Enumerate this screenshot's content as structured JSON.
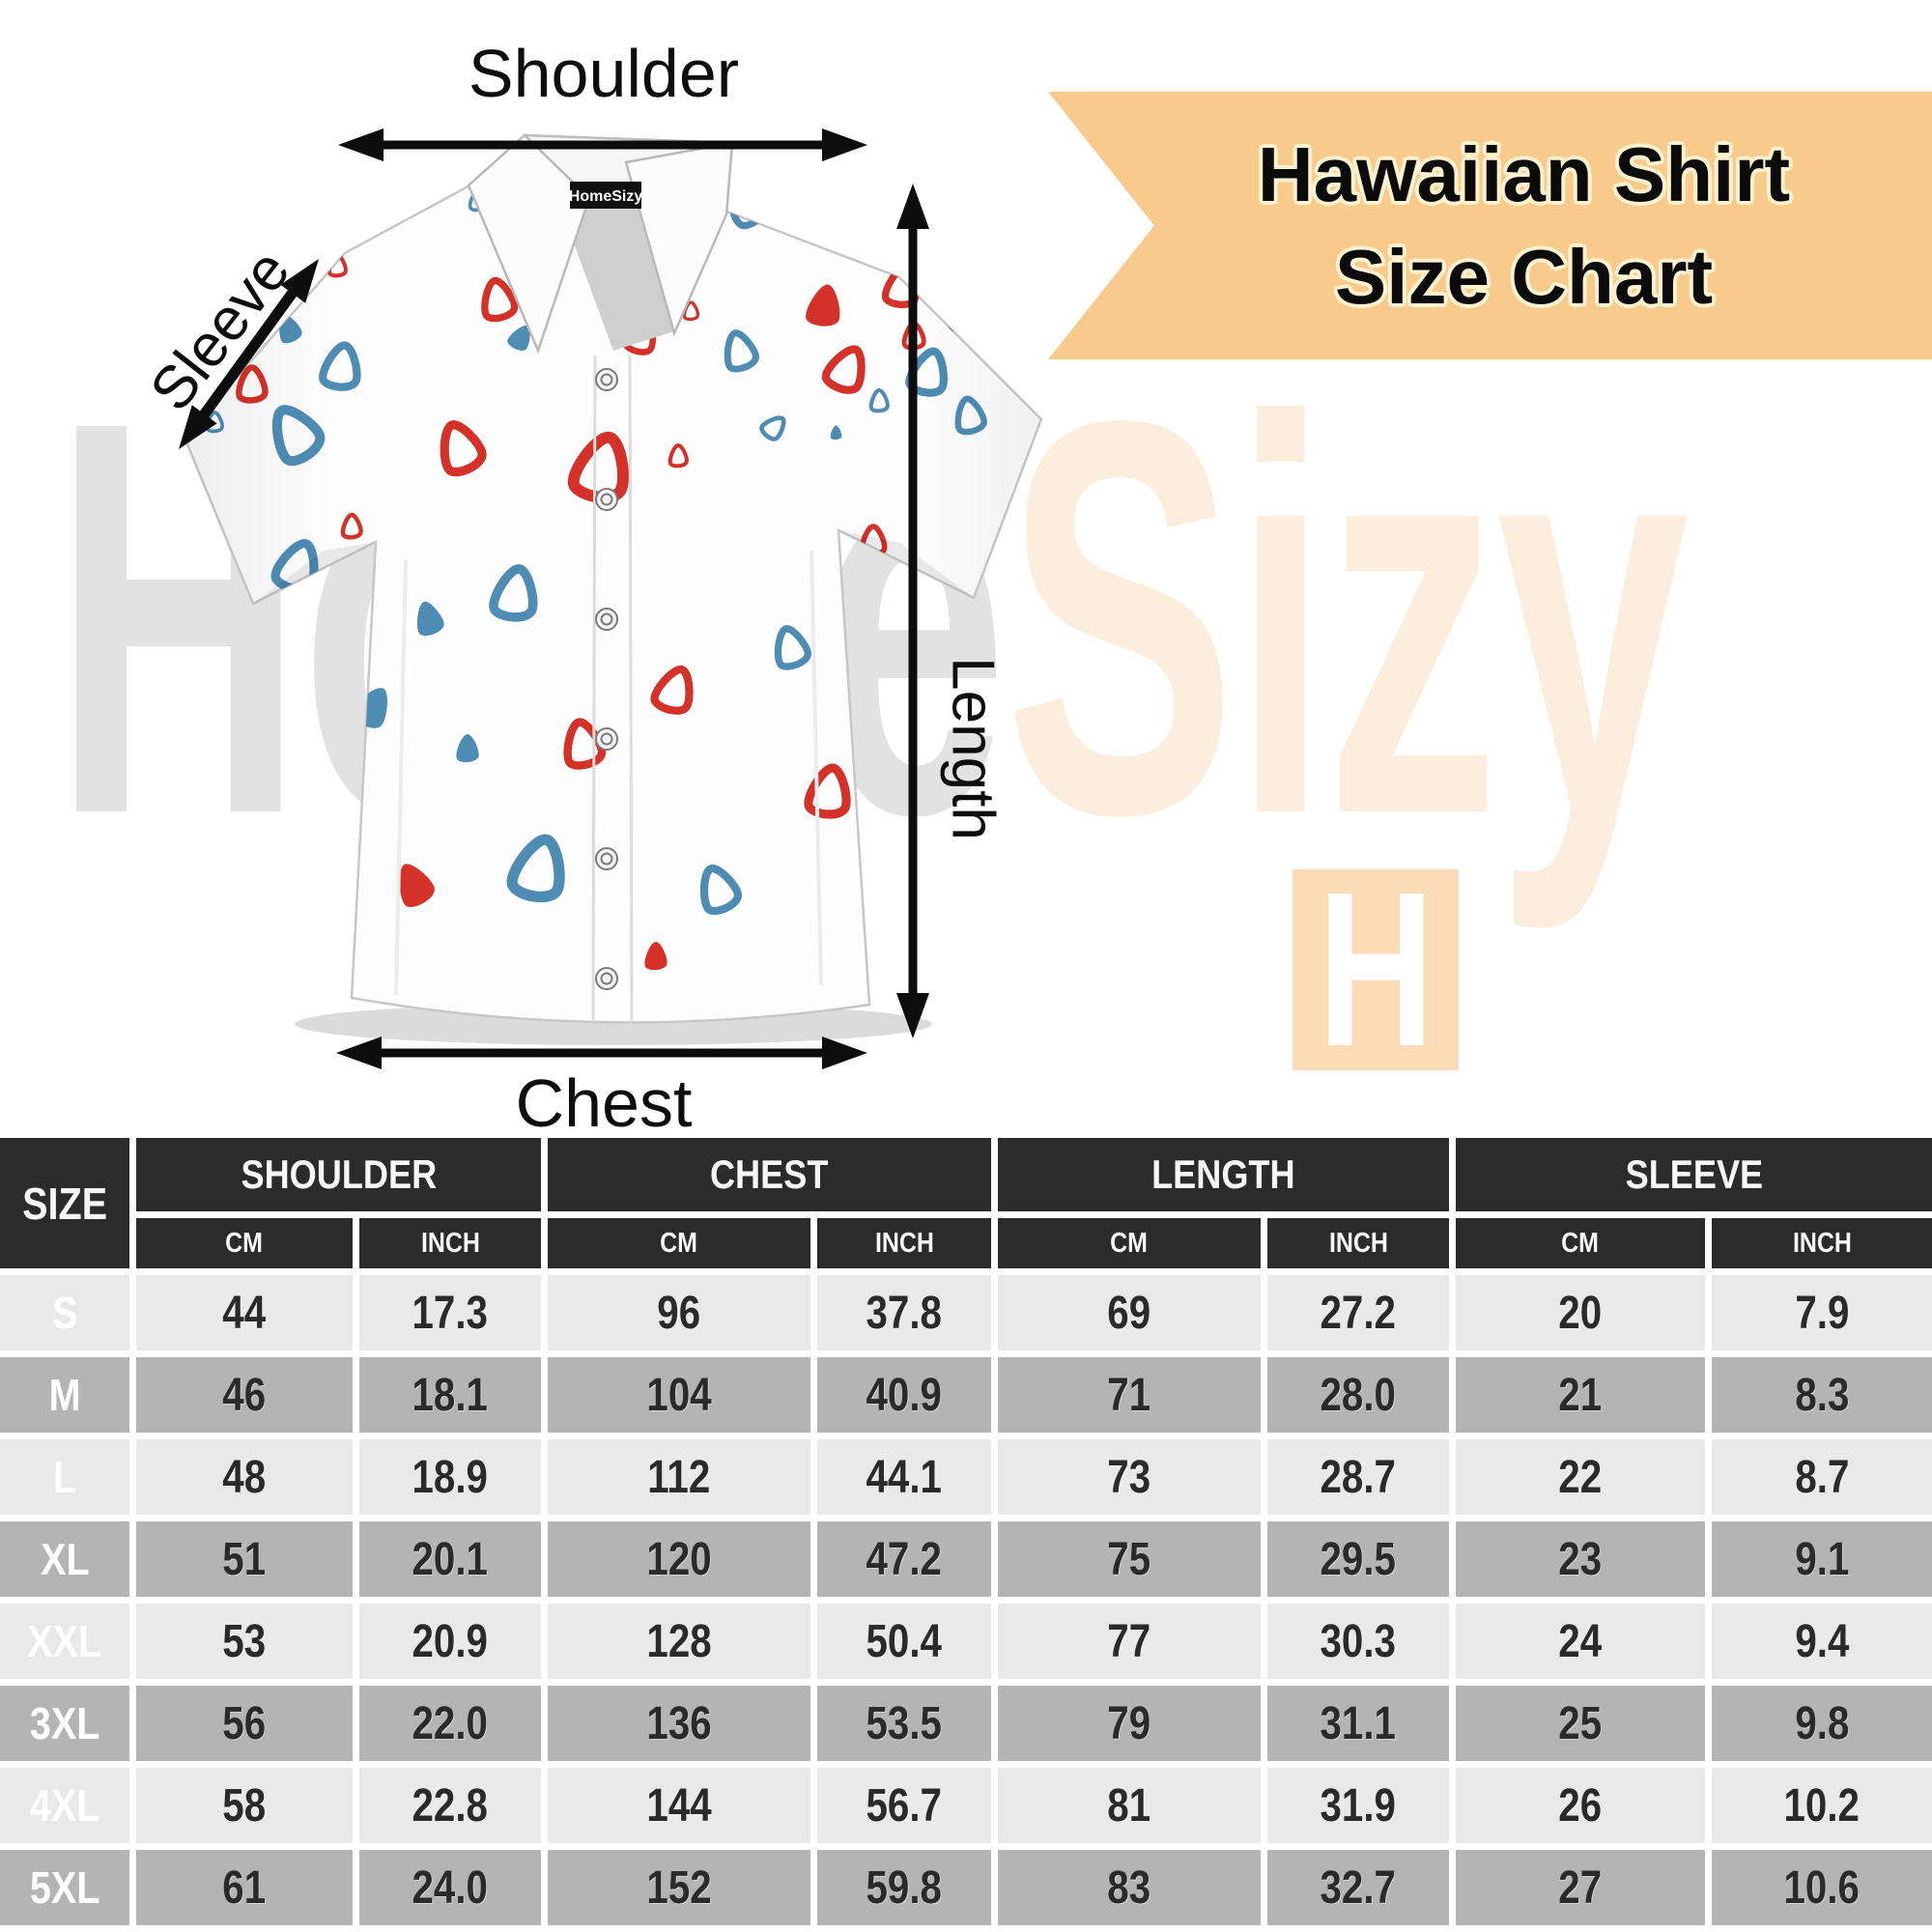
{
  "banner": {
    "title_line1": "Hawaiian Shirt",
    "title_line2": "Size Chart",
    "bg_color": "#f8ca8c",
    "text_color": "#0b0b0b",
    "halo_color": "#fdf2cf"
  },
  "watermark": {
    "left_text": "Home",
    "right_text": "Sizy",
    "left_color": "#e2e2e2",
    "right_color": "#fceedd"
  },
  "logo": {
    "letter": "H",
    "bg_color": "#fcdcb7",
    "letter_color": "#ffffff"
  },
  "shirt": {
    "collar_tag": "HomeSizy",
    "pattern_red": "#d43129",
    "pattern_blue": "#4e8cb4",
    "fabric_color": "#fdfdfd"
  },
  "measurements": {
    "shoulder": "Shoulder",
    "sleeve": "Sleeve",
    "length": "Length",
    "chest": "Chest"
  },
  "table": {
    "corner_label": "SIZE",
    "groups": [
      "SHOULDER",
      "CHEST",
      "LENGTH",
      "SLEEVE"
    ],
    "subheaders": [
      "CM",
      "INCH"
    ],
    "header_bg": "#2b2b2b",
    "row_light": "#e9e9e9",
    "row_dark": "#b4b4b4",
    "rows": [
      {
        "size": "S",
        "shoulder_cm": "44",
        "shoulder_inch": "17.3",
        "chest_cm": "96",
        "chest_inch": "37.8",
        "length_cm": "69",
        "length_inch": "27.2",
        "sleeve_cm": "20",
        "sleeve_inch": "7.9"
      },
      {
        "size": "M",
        "shoulder_cm": "46",
        "shoulder_inch": "18.1",
        "chest_cm": "104",
        "chest_inch": "40.9",
        "length_cm": "71",
        "length_inch": "28.0",
        "sleeve_cm": "21",
        "sleeve_inch": "8.3"
      },
      {
        "size": "L",
        "shoulder_cm": "48",
        "shoulder_inch": "18.9",
        "chest_cm": "112",
        "chest_inch": "44.1",
        "length_cm": "73",
        "length_inch": "28.7",
        "sleeve_cm": "22",
        "sleeve_inch": "8.7"
      },
      {
        "size": "XL",
        "shoulder_cm": "51",
        "shoulder_inch": "20.1",
        "chest_cm": "120",
        "chest_inch": "47.2",
        "length_cm": "75",
        "length_inch": "29.5",
        "sleeve_cm": "23",
        "sleeve_inch": "9.1"
      },
      {
        "size": "XXL",
        "shoulder_cm": "53",
        "shoulder_inch": "20.9",
        "chest_cm": "128",
        "chest_inch": "50.4",
        "length_cm": "77",
        "length_inch": "30.3",
        "sleeve_cm": "24",
        "sleeve_inch": "9.4"
      },
      {
        "size": "3XL",
        "shoulder_cm": "56",
        "shoulder_inch": "22.0",
        "chest_cm": "136",
        "chest_inch": "53.5",
        "length_cm": "79",
        "length_inch": "31.1",
        "sleeve_cm": "25",
        "sleeve_inch": "9.8"
      },
      {
        "size": "4XL",
        "shoulder_cm": "58",
        "shoulder_inch": "22.8",
        "chest_cm": "144",
        "chest_inch": "56.7",
        "length_cm": "81",
        "length_inch": "31.9",
        "sleeve_cm": "26",
        "sleeve_inch": "10.2"
      },
      {
        "size": "5XL",
        "shoulder_cm": "61",
        "shoulder_inch": "24.0",
        "chest_cm": "152",
        "chest_inch": "59.8",
        "length_cm": "83",
        "length_inch": "32.7",
        "sleeve_cm": "27",
        "sleeve_inch": "10.6"
      }
    ]
  },
  "chart_data": {
    "type": "table",
    "title": "Hawaiian Shirt Size Chart",
    "columns": [
      "SIZE",
      "SHOULDER CM",
      "SHOULDER INCH",
      "CHEST CM",
      "CHEST INCH",
      "LENGTH CM",
      "LENGTH INCH",
      "SLEEVE CM",
      "SLEEVE INCH"
    ],
    "rows": [
      [
        "S",
        44,
        17.3,
        96,
        37.8,
        69,
        27.2,
        20,
        7.9
      ],
      [
        "M",
        46,
        18.1,
        104,
        40.9,
        71,
        28.0,
        21,
        8.3
      ],
      [
        "L",
        48,
        18.9,
        112,
        44.1,
        73,
        28.7,
        22,
        8.7
      ],
      [
        "XL",
        51,
        20.1,
        120,
        47.2,
        75,
        29.5,
        23,
        9.1
      ],
      [
        "XXL",
        53,
        20.9,
        128,
        50.4,
        77,
        30.3,
        24,
        9.4
      ],
      [
        "3XL",
        56,
        22.0,
        136,
        53.5,
        79,
        31.1,
        25,
        9.8
      ],
      [
        "4XL",
        58,
        22.8,
        144,
        56.7,
        81,
        31.9,
        26,
        10.2
      ],
      [
        "5XL",
        61,
        24.0,
        152,
        59.8,
        83,
        32.7,
        27,
        10.6
      ]
    ]
  }
}
